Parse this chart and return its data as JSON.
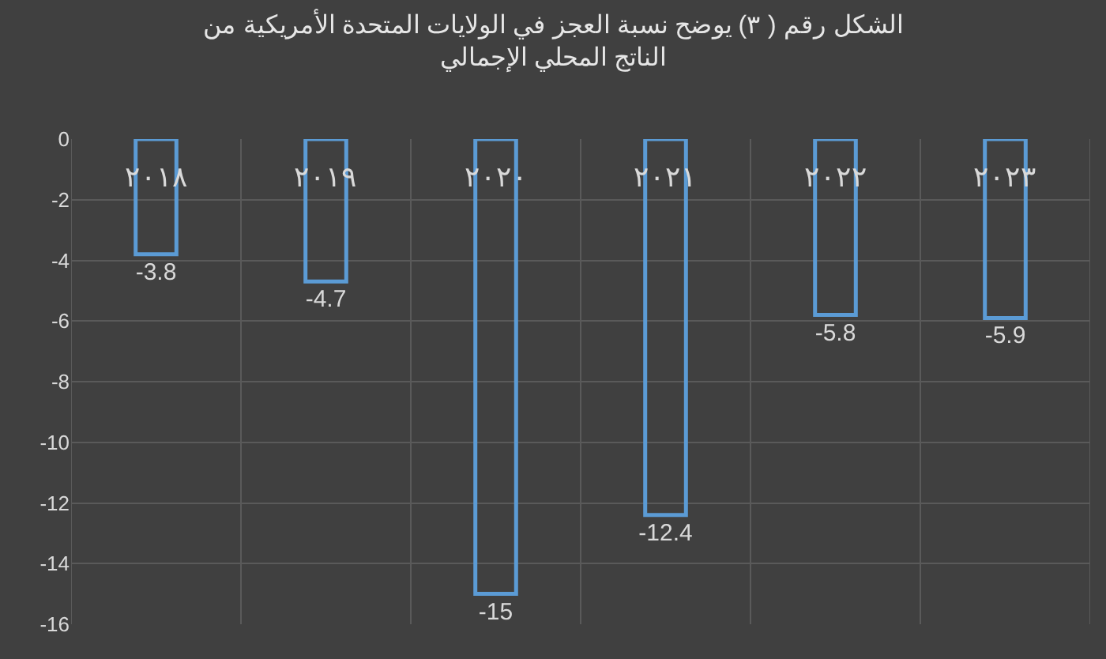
{
  "chart_data": {
    "type": "bar",
    "title": "الشكل رقم ( ٣) يوضح نسبة العجز في الولايات المتحدة الأمريكية من\nالناتج المحلي الإجمالي",
    "categories": [
      "٢٠١٨",
      "٢٠١٩",
      "٢٠٢٠",
      "٢٠٢١",
      "٢٠٢٢",
      "٢٠٢٣"
    ],
    "values": [
      -3.8,
      -4.7,
      -15,
      -12.4,
      -5.8,
      -5.9
    ],
    "color": "#5b9bd5",
    "ylim": [
      -16,
      0
    ],
    "yticks": [
      -16,
      -14,
      -12,
      -10,
      -8,
      -6,
      -4,
      -2,
      0
    ],
    "grid": true,
    "data_labels": true
  }
}
